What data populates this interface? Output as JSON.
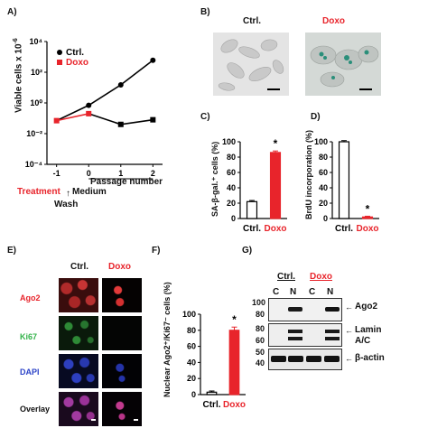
{
  "panelA": {
    "letter": "A)",
    "ylabel": "Viable cells x 10",
    "ylabel_exp": "-6",
    "xlabel": "Passage number",
    "legend": [
      {
        "name": "Ctrl.",
        "color": "#000000"
      },
      {
        "name": "Doxo",
        "color": "#e8242b"
      }
    ],
    "treatment": "Treatment",
    "medium": "Medium",
    "wash": "Wash"
  },
  "panelB": {
    "letter": "B)",
    "ctrl": "Ctrl.",
    "doxo": "Doxo"
  },
  "panelC": {
    "letter": "C)",
    "ylabel": "SA-β-gal.⁺ cells (%)",
    "star": "*"
  },
  "panelD": {
    "letter": "D)",
    "ylabel": "BrdU incorporation (%)",
    "star": "*"
  },
  "panelE": {
    "letter": "E)",
    "ctrl": "Ctrl.",
    "doxo": "Doxo",
    "rows": [
      "Ago2",
      "Ki67",
      "DAPI",
      "Overlay"
    ]
  },
  "panelF": {
    "letter": "F)",
    "ylabel": "Nuclear Ago2⁺/Ki67⁻ cells (%)",
    "star": "*"
  },
  "panelG": {
    "letter": "G)",
    "ctrl": "Ctrl.",
    "doxo": "Doxo",
    "lanes": [
      "C",
      "N",
      "C",
      "N"
    ],
    "blots": [
      {
        "label": "Ago2",
        "markers": [
          "100",
          "80"
        ]
      },
      {
        "label": "Lamin A/C",
        "markers": [
          "80",
          "60"
        ]
      },
      {
        "label": "β-actin",
        "markers": [
          "50",
          "40"
        ]
      }
    ]
  },
  "chart_data": [
    {
      "panel": "A",
      "type": "line",
      "x": [
        -1,
        0,
        1,
        2
      ],
      "xticks": [
        "-1",
        "0",
        "1",
        "2"
      ],
      "yscale": "log",
      "yticks": [
        "10⁻⁴",
        "10⁻²",
        "10⁰",
        "10²",
        "10⁴"
      ],
      "ylim": [
        0.0001,
        10000
      ],
      "xlabel": "Passage number",
      "ylabel": "Viable cells x 10⁻⁶",
      "series": [
        {
          "name": "Ctrl.",
          "color": "#000000",
          "x": [
            -1,
            0,
            1,
            2
          ],
          "values": [
            0.07,
            0.7,
            15,
            600
          ]
        },
        {
          "name": "Doxo",
          "color": "#e8242b",
          "x": [
            -1,
            0
          ],
          "values": [
            0.07,
            0.2
          ]
        },
        {
          "name": "Doxo",
          "color": "#000000",
          "x": [
            0,
            1,
            2
          ],
          "values": [
            0.2,
            0.04,
            0.08
          ]
        }
      ],
      "legend": "top-left"
    },
    {
      "panel": "C",
      "type": "bar",
      "categories": [
        "Ctrl.",
        "Doxo"
      ],
      "values": [
        22,
        86
      ],
      "errors": [
        1.5,
        2
      ],
      "colors": [
        "#ffffff",
        "#e8242b"
      ],
      "ylim": [
        0,
        100
      ],
      "yticks": [
        0,
        20,
        40,
        60,
        80,
        100
      ],
      "ylabel": "SA-β-gal.⁺ cells (%)"
    },
    {
      "panel": "D",
      "type": "bar",
      "categories": [
        "Ctrl.",
        "Doxo"
      ],
      "values": [
        100,
        2
      ],
      "errors": [
        1.5,
        1
      ],
      "colors": [
        "#ffffff",
        "#e8242b"
      ],
      "ylim": [
        0,
        100
      ],
      "yticks": [
        0,
        20,
        40,
        60,
        80,
        100
      ],
      "ylabel": "BrdU incorporation (%)"
    },
    {
      "panel": "F",
      "type": "bar",
      "categories": [
        "Ctrl.",
        "Doxo"
      ],
      "values": [
        3,
        80
      ],
      "errors": [
        1.5,
        4
      ],
      "colors": [
        "#ffffff",
        "#e8242b"
      ],
      "ylim": [
        0,
        100
      ],
      "yticks": [
        0,
        20,
        40,
        60,
        80,
        100
      ],
      "ylabel": "Nuclear Ago2⁺/Ki67⁻ cells (%)"
    }
  ]
}
